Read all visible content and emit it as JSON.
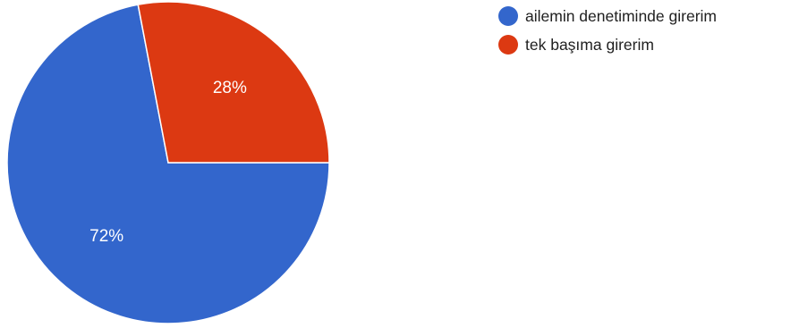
{
  "chart_data": {
    "type": "pie",
    "title": "",
    "legend_position": "top-right",
    "slices": [
      {
        "label": "ailemin denetiminde girerim",
        "value": 72,
        "display": "72%",
        "color": "#3366cc"
      },
      {
        "label": "tek başıma girerim",
        "value": 28,
        "display": "28%",
        "color": "#dc3912"
      }
    ]
  }
}
